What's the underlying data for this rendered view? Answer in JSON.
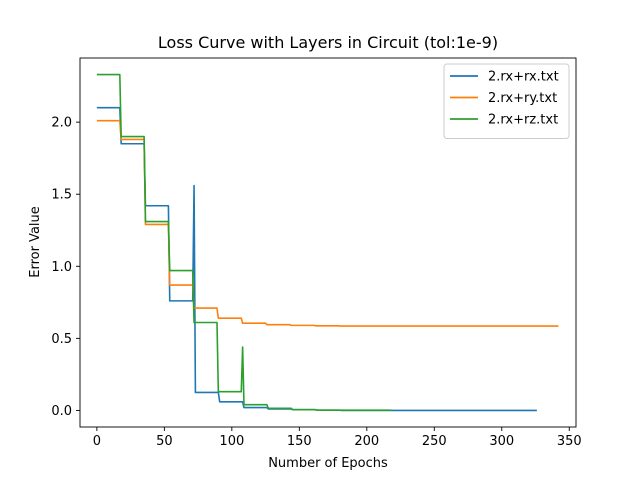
{
  "chart_data": {
    "type": "line",
    "title": "Loss Curve with Layers in Circuit (tol:1e-9)",
    "xlabel": "Number of Epochs",
    "ylabel": "Error Value",
    "xlim": [
      -12.5,
      355
    ],
    "ylim": [
      -0.115,
      2.445
    ],
    "xticks": [
      0,
      50,
      100,
      150,
      200,
      250,
      300,
      350
    ],
    "yticks": [
      0.0,
      0.5,
      1.0,
      1.5,
      2.0
    ],
    "ytick_labels": [
      "0.0",
      "0.5",
      "1.0",
      "1.5",
      "2.0"
    ],
    "grid": false,
    "legend_position": "top-right",
    "series": [
      {
        "name": "2.rx+rx.txt",
        "color": "#1f77b4",
        "x": [
          0,
          17,
          18,
          35,
          36,
          53,
          54,
          71,
          72,
          73,
          90,
          91,
          108,
          109,
          126,
          127,
          144,
          145,
          162,
          163,
          180,
          181,
          326
        ],
        "y": [
          2.1,
          2.1,
          1.85,
          1.85,
          1.42,
          1.42,
          0.76,
          0.76,
          1.56,
          0.125,
          0.125,
          0.06,
          0.06,
          0.02,
          0.02,
          0.01,
          0.01,
          0.005,
          0.005,
          0.002,
          0.002,
          0.0,
          0.0
        ]
      },
      {
        "name": "2.rx+ry.txt",
        "color": "#ff7f0e",
        "x": [
          0,
          17,
          18,
          35,
          36,
          53,
          54,
          71,
          72,
          89,
          90,
          107,
          108,
          125,
          126,
          143,
          144,
          161,
          162,
          179,
          180,
          342
        ],
        "y": [
          2.01,
          2.01,
          1.88,
          1.88,
          1.29,
          1.29,
          0.87,
          0.87,
          0.71,
          0.71,
          0.64,
          0.64,
          0.605,
          0.605,
          0.595,
          0.595,
          0.59,
          0.59,
          0.587,
          0.587,
          0.585,
          0.585
        ]
      },
      {
        "name": "2.rx+rz.txt",
        "color": "#2ca02c",
        "x": [
          0,
          17,
          18,
          35,
          36,
          53,
          54,
          71,
          72,
          89,
          90,
          107,
          108,
          109,
          126,
          127,
          144,
          145,
          162,
          163,
          218
        ],
        "y": [
          2.33,
          2.33,
          1.9,
          1.9,
          1.31,
          1.31,
          0.97,
          0.97,
          0.61,
          0.61,
          0.13,
          0.13,
          0.44,
          0.04,
          0.04,
          0.015,
          0.015,
          0.005,
          0.005,
          0.002,
          0.002
        ]
      }
    ]
  }
}
